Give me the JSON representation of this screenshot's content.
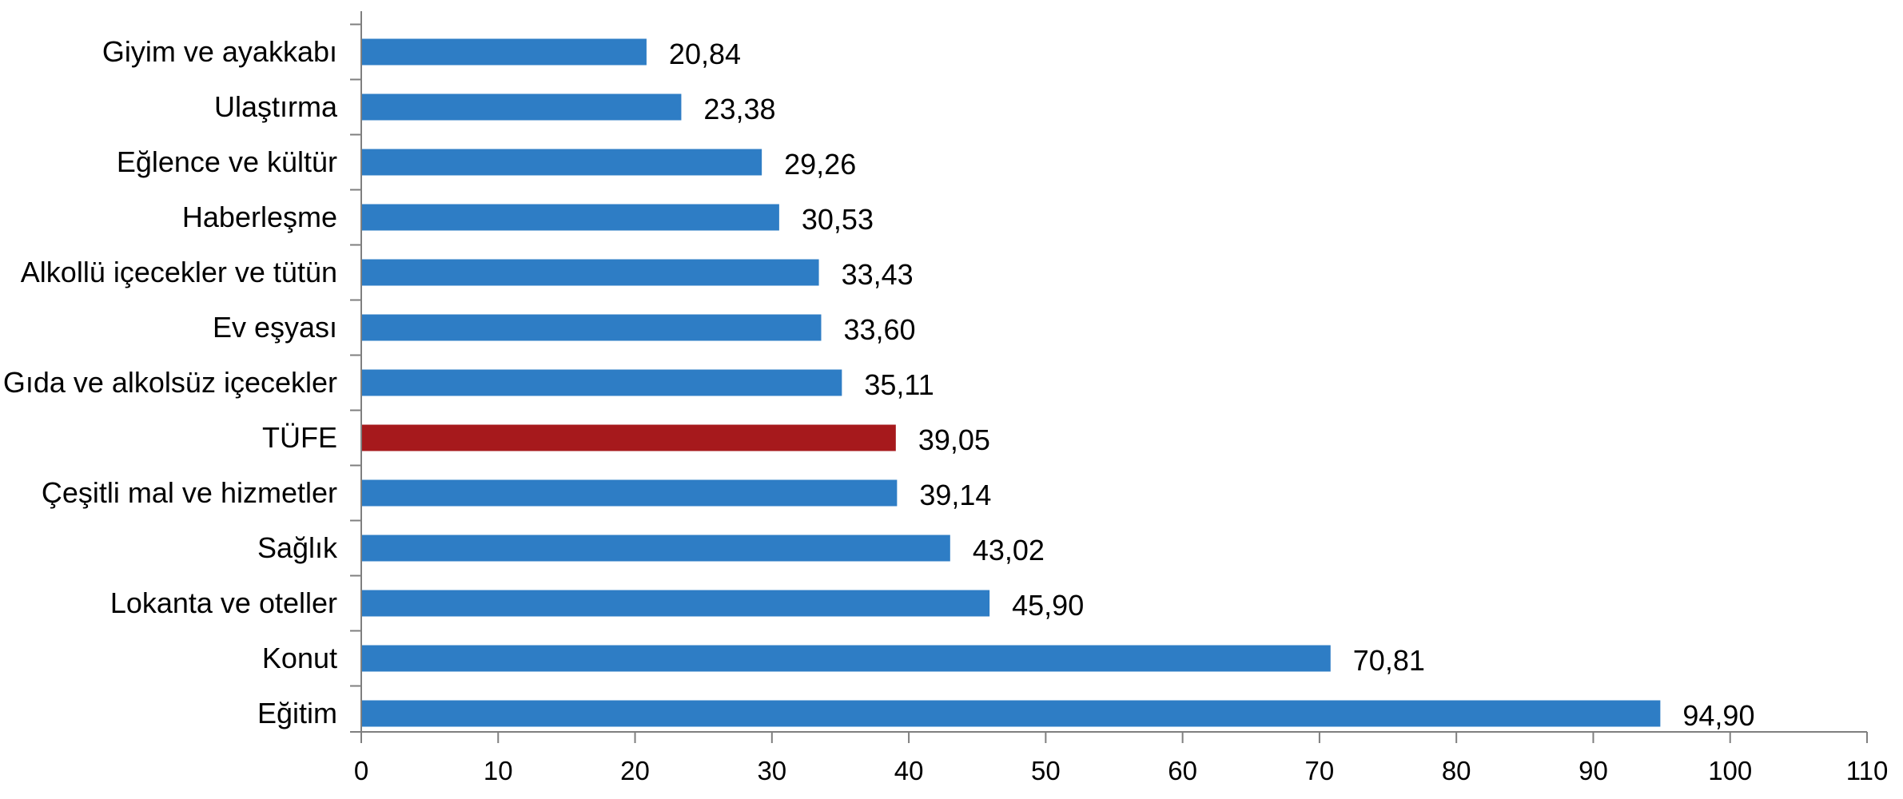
{
  "chart_data": {
    "type": "bar",
    "orientation": "horizontal",
    "categories": [
      "Giyim ve ayakkabı",
      "Ulaştırma",
      "Eğlence ve kültür",
      "Haberleşme",
      "Alkollü içecekler ve tütün",
      "Ev eşyası",
      "Gıda ve alkolsüz içecekler",
      "TÜFE",
      "Çeşitli mal ve hizmetler",
      "Sağlık",
      "Lokanta ve oteller",
      "Konut",
      "Eğitim"
    ],
    "values": [
      20.84,
      23.38,
      29.26,
      30.53,
      33.43,
      33.6,
      35.11,
      39.05,
      39.14,
      43.02,
      45.9,
      70.81,
      94.9
    ],
    "value_labels": [
      "20,84",
      "23,38",
      "29,26",
      "30,53",
      "33,43",
      "33,60",
      "35,11",
      "39,05",
      "39,14",
      "43,02",
      "45,90",
      "70,81",
      "94,90"
    ],
    "xlim": [
      0,
      110
    ],
    "x_ticks": [
      0,
      10,
      20,
      30,
      40,
      50,
      60,
      70,
      80,
      90,
      100,
      110
    ],
    "title": "",
    "xlabel": "",
    "ylabel": "",
    "grid": false,
    "legend": "none",
    "colors": {
      "bar": "#2e7dc5",
      "highlight": "#a6191c",
      "axis": "#7f7f7f",
      "text": "#000000"
    },
    "highlight_category": "TÜFE"
  }
}
